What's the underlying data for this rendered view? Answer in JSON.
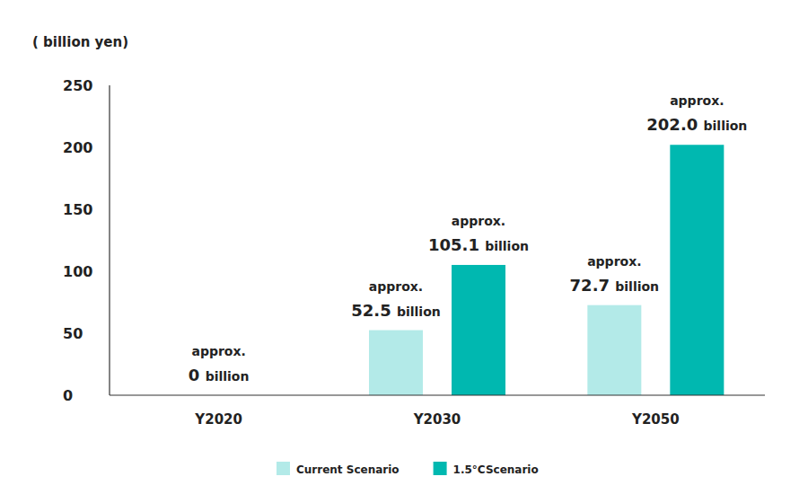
{
  "chart_data": {
    "type": "bar",
    "y_label": "( billion yen)",
    "categories": [
      "Y2020",
      "Y2030",
      "Y2050"
    ],
    "series": [
      {
        "name": "Current Scenario",
        "color": "#b3eae8",
        "values": [
          0,
          52.5,
          72.7
        ],
        "value_labels": [
          "approx. 0 billion",
          "approx. 52.5 billion",
          "approx. 72.7 billion"
        ]
      },
      {
        "name": "1.5°CScenario",
        "color": "#00b8b0",
        "values": [
          null,
          105.1,
          202.0
        ],
        "value_labels": [
          null,
          "approx. 105.1 billion",
          "approx. 202.0 billion"
        ]
      }
    ],
    "ylim": [
      0,
      250
    ],
    "yticks": [
      0,
      50,
      100,
      150,
      200,
      250
    ],
    "grid": false,
    "data_labels": true,
    "legend": "bottom"
  }
}
